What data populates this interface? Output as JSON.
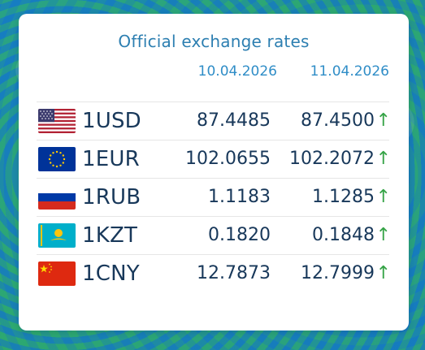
{
  "header": {
    "title": "Official exchange rates",
    "date_prev": "10.04.2026",
    "date_curr": "11.04.2026"
  },
  "rates": [
    {
      "flag": "usa-flag-icon",
      "code": "1USD",
      "prev": "87.4485",
      "curr": "87.4500",
      "trend": "↑"
    },
    {
      "flag": "eu-flag-icon",
      "code": "1EUR",
      "prev": "102.0655",
      "curr": "102.2072",
      "trend": "↑"
    },
    {
      "flag": "russia-flag-icon",
      "code": "1RUB",
      "prev": "1.1183",
      "curr": "1.1285",
      "trend": "↑"
    },
    {
      "flag": "kazakhstan-flag-icon",
      "code": "1KZT",
      "prev": "0.1820",
      "curr": "0.1848",
      "trend": "↑"
    },
    {
      "flag": "china-flag-icon",
      "code": "1CNY",
      "prev": "12.7873",
      "curr": "12.7999",
      "trend": "↑"
    }
  ],
  "colors": {
    "title": "#2d7fb1",
    "text": "#18385a",
    "up": "#35a346"
  }
}
